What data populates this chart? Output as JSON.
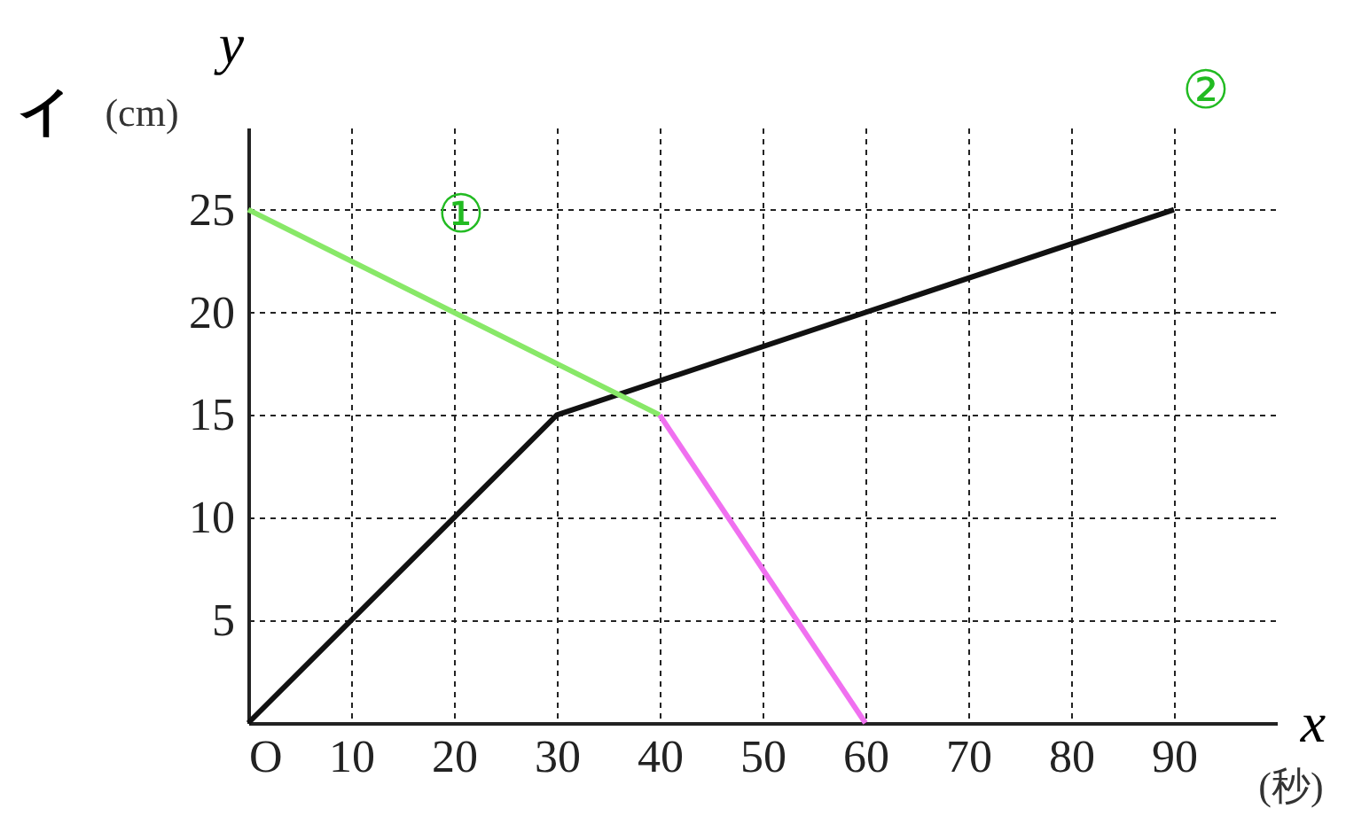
{
  "chart_data": {
    "type": "line",
    "title": "イ",
    "xlabel": "x",
    "ylabel": "y",
    "annotations": [
      "(cm)",
      "(秒)",
      "①",
      "②"
    ],
    "series": [
      {
        "color": "#111111",
        "x": [
          0,
          30,
          90
        ],
        "values": [
          0,
          15,
          25
        ]
      },
      {
        "color": "#88e868",
        "x": [
          0,
          40
        ],
        "values": [
          25,
          15
        ]
      },
      {
        "color": "#f070f0",
        "x": [
          40,
          60
        ],
        "values": [
          15,
          0
        ]
      }
    ],
    "xlim": [
      0,
      100
    ],
    "ylim": [
      0,
      29
    ],
    "xticks": [
      {
        "value": 0,
        "label": "O"
      },
      10,
      20,
      30,
      40,
      50,
      60,
      70,
      80,
      90
    ],
    "yticks": [
      5,
      10,
      15,
      20,
      25
    ],
    "grid": true,
    "marker": "none",
    "line_style": "solid"
  }
}
